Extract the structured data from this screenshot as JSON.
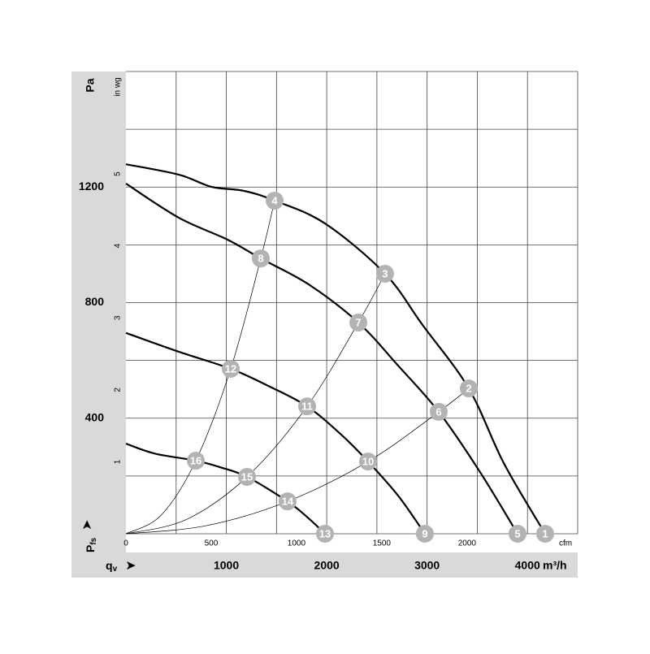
{
  "chart_data": {
    "type": "line",
    "x_symbol": "q",
    "x_symbol_sub": "v",
    "x_unit": "m³/h",
    "y_symbol": "P",
    "y_symbol_sub": "fs",
    "y_unit": "Pa",
    "x2_unit": "cfm",
    "y2_unit": "in wg",
    "xlim": [
      0,
      4500
    ],
    "xticks": [
      1000,
      2000,
      3000,
      4000
    ],
    "xgrid": [
      500,
      1000,
      1500,
      2000,
      2500,
      3000,
      3500,
      4000,
      4500
    ],
    "ylim": [
      0,
      1600
    ],
    "yticks": [
      400,
      800,
      1200
    ],
    "ygrid": [
      200,
      400,
      600,
      800,
      1000,
      1200,
      1400,
      1600
    ],
    "x2lim": [
      0,
      2648.6
    ],
    "x2ticks": [
      0,
      500,
      1000,
      1500,
      2000
    ],
    "y2lim": [
      0,
      6.423
    ],
    "y2ticks": [
      1,
      2,
      3,
      4,
      5
    ],
    "series": [
      {
        "color": "#000000",
        "line_width": 2.2,
        "x": [
          0,
          526,
          850,
          1174,
          1481,
          1983,
          2581,
          2954,
          3415,
          3763,
          4176
        ],
        "values": [
          1279,
          1243,
          1201,
          1187,
          1153,
          1074,
          900,
          723,
          503,
          245,
          0
        ]
      },
      {
        "color": "#000000",
        "line_width": 2.2,
        "x": [
          0,
          526,
          1012,
          1343,
          1821,
          2315,
          2711,
          3116,
          3521,
          3901
        ],
        "values": [
          1212,
          1094,
          1018,
          953,
          863,
          731,
          582,
          422,
          217,
          0
        ]
      },
      {
        "color": "#000000",
        "line_width": 2.2,
        "x": [
          0,
          526,
          1044,
          1416,
          1805,
          2145,
          2412,
          2711,
          2978
        ],
        "values": [
          695,
          630,
          571,
          512,
          441,
          343,
          250,
          132,
          0
        ]
      },
      {
        "color": "#000000",
        "line_width": 2.2,
        "x": [
          0,
          283,
          696,
          931,
          1206,
          1610,
          1821,
          1983
        ],
        "values": [
          312,
          278,
          253,
          231,
          197,
          112,
          53,
          0
        ]
      },
      {
        "color": "#000000",
        "line_width": 0.7,
        "x": [
          0,
          350,
          696,
          1044,
          1343,
          1481
        ],
        "values": [
          0,
          64,
          253,
          571,
          953,
          1153
        ]
      },
      {
        "color": "#000000",
        "line_width": 0.7,
        "x": [
          0,
          600,
          1206,
          1805,
          2315,
          2581
        ],
        "values": [
          0,
          49,
          197,
          441,
          731,
          900
        ]
      },
      {
        "color": "#000000",
        "line_width": 0.7,
        "x": [
          0,
          800,
          1610,
          2412,
          3116,
          3415
        ],
        "values": [
          0,
          28,
          112,
          250,
          422,
          503
        ]
      }
    ],
    "points_color": "#b3b3b3",
    "points": [
      {
        "label": "1",
        "x": 4176,
        "y": 0
      },
      {
        "label": "2",
        "x": 3415,
        "y": 503
      },
      {
        "label": "3",
        "x": 2581,
        "y": 900
      },
      {
        "label": "4",
        "x": 1481,
        "y": 1153
      },
      {
        "label": "5",
        "x": 3901,
        "y": 0
      },
      {
        "label": "6",
        "x": 3116,
        "y": 422
      },
      {
        "label": "7",
        "x": 2315,
        "y": 731
      },
      {
        "label": "8",
        "x": 1343,
        "y": 953
      },
      {
        "label": "9",
        "x": 2978,
        "y": 0
      },
      {
        "label": "10",
        "x": 2412,
        "y": 250
      },
      {
        "label": "11",
        "x": 1805,
        "y": 441
      },
      {
        "label": "12",
        "x": 1044,
        "y": 571
      },
      {
        "label": "13",
        "x": 1983,
        "y": 0
      },
      {
        "label": "14",
        "x": 1610,
        "y": 112
      },
      {
        "label": "15",
        "x": 1206,
        "y": 197
      },
      {
        "label": "16",
        "x": 696,
        "y": 253
      }
    ]
  }
}
